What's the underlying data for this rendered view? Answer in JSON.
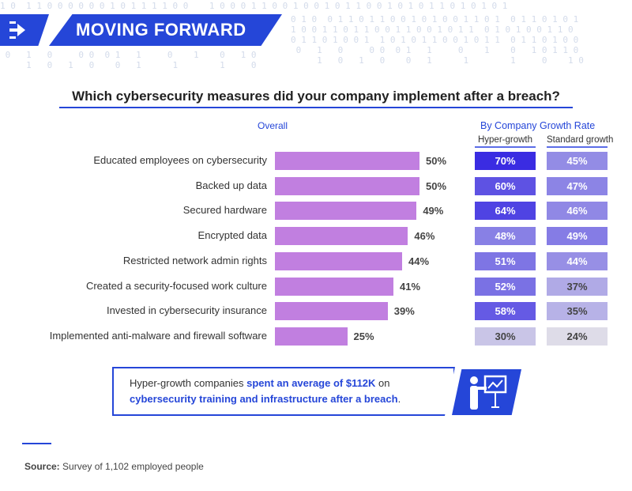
{
  "banner": {
    "title": "MOVING FORWARD",
    "icon": "arrows-right-icon"
  },
  "chart_data": {
    "type": "bar",
    "title": "Which cybersecurity measures did your company implement after a breach?",
    "overall_label": "Overall",
    "group_label": "By Company Growth Rate",
    "categories": [
      "Educated employees on cybersecurity",
      "Backed up data",
      "Secured hardware",
      "Encrypted data",
      "Restricted network admin rights",
      "Created a security-focused work culture",
      "Invested in cybersecurity insurance",
      "Implemented anti-malware and firewall software"
    ],
    "series": [
      {
        "name": "Overall",
        "values": [
          50,
          50,
          49,
          46,
          44,
          41,
          39,
          25
        ],
        "color": "#c17fe0"
      },
      {
        "name": "Hyper-growth",
        "values": [
          70,
          60,
          64,
          48,
          51,
          52,
          58,
          30
        ]
      },
      {
        "name": "Standard growth",
        "values": [
          45,
          47,
          46,
          49,
          44,
          37,
          35,
          24
        ]
      }
    ],
    "value_suffix": "%"
  },
  "callout": {
    "plain1": "Hyper-growth companies ",
    "bold": "spent an average of $112K",
    "plain2": " on ",
    "bold2": "cybersecurity training and infrastructure after a breach",
    "plain3": ".",
    "icon": "presentation-chart-icon"
  },
  "source": {
    "label": "Source:",
    "text": " Survey of 1,102 employed people"
  },
  "colors": {
    "brand": "#2546d8"
  }
}
